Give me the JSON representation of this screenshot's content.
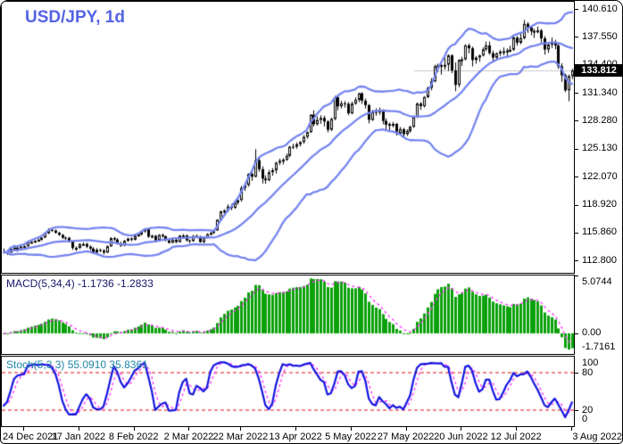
{
  "header": {
    "title": "USD/JPY, 1d"
  },
  "main_axis": {
    "labels": [
      "140.610",
      "137.550",
      "134.400",
      "131.340",
      "128.280",
      "125.130",
      "122.070",
      "118.920",
      "115.860",
      "112.800"
    ],
    "current_price": "133.812"
  },
  "macd_panel": {
    "label": "MACD(5,34,4) -1.1736 -1.2833",
    "axis_labels": [
      "5.0744",
      "0.00",
      "-1.7161"
    ]
  },
  "stoch_panel": {
    "label": "Stoch(5,3,3) 55.0910 35.8361",
    "axis_labels": [
      "100",
      "80",
      "20",
      "0"
    ]
  },
  "colors": {
    "title": "#5463e3",
    "bollinger": "#7585ef",
    "bull_body": "#ffffff",
    "bear_body": "#000000",
    "candle_outline": "#000000",
    "macd_histogram": "#0aa10a",
    "macd_signal": "#ff2dff",
    "stoch_k": "#1414e0",
    "stoch_d": "#ff2dff",
    "stoch_levels": "#e01010",
    "price_line": "#c6c6c6",
    "tag_bg": "#000000",
    "tag_fg": "#ffffff"
  },
  "chart_data": {
    "type": "candlestick",
    "symbol": "USD/JPY",
    "timeframe": "1d",
    "title": "USD/JPY, 1d",
    "y_axis_ticks": [
      140.61,
      137.55,
      134.4,
      131.34,
      128.28,
      125.13,
      122.07,
      118.92,
      115.86,
      112.8
    ],
    "y_range": [
      111.42,
      141.4
    ],
    "current_price": 133.812,
    "x_tick_labels": [
      "24 Dec 2021",
      "17 Jan 2022",
      "8 Feb 2022",
      "2 Mar 2022",
      "22 Mar 2022",
      "13 Apr 2022",
      "5 May 2022",
      "27 May 2022",
      "20 Jun 2022",
      "12 Jul 2022",
      "3 Aug 2022"
    ],
    "x_tick_candle_indices": [
      6,
      22,
      38,
      54,
      69,
      85,
      101,
      117,
      133,
      149,
      165
    ],
    "overlays": [
      {
        "name": "bollinger-bands",
        "period": 20,
        "deviation": 2
      }
    ],
    "panels": [
      {
        "name": "MACD",
        "params": [
          5,
          34,
          4
        ],
        "display_values": [
          -1.1736,
          -1.2833
        ],
        "y_axis_labels": [
          5.0744,
          0.0,
          -1.7161
        ]
      },
      {
        "name": "Stochastic",
        "params": [
          5,
          3,
          3
        ],
        "display_values": [
          55.091,
          35.8361
        ],
        "y_axis_labels": [
          100,
          80,
          20,
          0
        ],
        "levels": [
          80,
          20
        ]
      }
    ],
    "candles_ohlc": [
      [
        113.79,
        114.1,
        113.55,
        113.7
      ],
      [
        113.7,
        113.95,
        113.4,
        113.67
      ],
      [
        113.67,
        114.2,
        113.6,
        114.08
      ],
      [
        114.08,
        114.35,
        113.95,
        114.21
      ],
      [
        114.21,
        114.4,
        113.75,
        113.96
      ],
      [
        113.96,
        114.45,
        113.9,
        114.33
      ],
      [
        114.33,
        114.45,
        113.98,
        114.37
      ],
      [
        114.37,
        114.85,
        114.3,
        114.79
      ],
      [
        114.79,
        114.95,
        114.65,
        114.84
      ],
      [
        114.84,
        115.02,
        114.74,
        114.96
      ],
      [
        114.96,
        115.2,
        114.85,
        115.08
      ],
      [
        115.08,
        115.36,
        114.95,
        115.32
      ],
      [
        115.32,
        115.89,
        115.25,
        115.79
      ],
      [
        115.79,
        116.35,
        115.7,
        116.17
      ],
      [
        116.17,
        116.28,
        115.95,
        116.1
      ],
      [
        116.1,
        116.2,
        115.75,
        115.85
      ],
      [
        115.85,
        115.98,
        115.51,
        115.62
      ],
      [
        115.62,
        115.7,
        115.18,
        115.3
      ],
      [
        115.3,
        115.45,
        115.05,
        115.29
      ],
      [
        115.29,
        115.4,
        114.75,
        114.89
      ],
      [
        114.89,
        115.0,
        113.95,
        114.18
      ],
      [
        114.18,
        114.35,
        113.85,
        114.19
      ],
      [
        114.19,
        114.7,
        114.05,
        114.6
      ],
      [
        114.6,
        114.78,
        114.4,
        114.61
      ],
      [
        114.61,
        114.75,
        114.15,
        114.32
      ],
      [
        114.32,
        114.45,
        113.9,
        114.1
      ],
      [
        114.1,
        114.25,
        113.6,
        113.66
      ],
      [
        113.66,
        114.15,
        113.58,
        113.97
      ],
      [
        113.97,
        114.1,
        113.7,
        113.88
      ],
      [
        113.88,
        114.05,
        113.46,
        113.66
      ],
      [
        113.66,
        114.45,
        113.6,
        114.36
      ],
      [
        114.36,
        115.35,
        114.3,
        115.26
      ],
      [
        115.26,
        115.4,
        114.95,
        115.11
      ],
      [
        115.11,
        115.25,
        114.55,
        114.68
      ],
      [
        114.68,
        114.85,
        114.3,
        114.43
      ],
      [
        114.43,
        115.05,
        114.35,
        114.96
      ],
      [
        114.96,
        115.3,
        114.85,
        115.21
      ],
      [
        115.21,
        115.35,
        114.9,
        115.08
      ],
      [
        115.08,
        115.65,
        115.0,
        115.54
      ],
      [
        115.54,
        115.75,
        115.4,
        115.67
      ],
      [
        115.67,
        116.1,
        115.55,
        116.0
      ],
      [
        116.0,
        116.34,
        115.85,
        116.33
      ],
      [
        116.33,
        116.38,
        115.3,
        115.42
      ],
      [
        115.42,
        115.65,
        115.25,
        115.52
      ],
      [
        115.52,
        115.6,
        114.92,
        115.01
      ],
      [
        115.01,
        115.7,
        114.95,
        115.61
      ],
      [
        115.61,
        115.75,
        115.3,
        115.47
      ],
      [
        115.47,
        115.55,
        114.9,
        115.0
      ],
      [
        115.0,
        115.15,
        114.65,
        114.74
      ],
      [
        114.74,
        115.15,
        114.68,
        115.07
      ],
      [
        115.07,
        115.2,
        114.7,
        114.82
      ],
      [
        114.82,
        115.6,
        114.78,
        115.54
      ],
      [
        115.54,
        115.7,
        115.35,
        115.55
      ],
      [
        115.55,
        115.65,
        114.9,
        115.0
      ],
      [
        115.0,
        115.1,
        114.7,
        114.93
      ],
      [
        114.93,
        115.6,
        114.85,
        115.51
      ],
      [
        115.51,
        115.65,
        115.25,
        115.43
      ],
      [
        115.43,
        115.55,
        114.75,
        114.82
      ],
      [
        114.82,
        115.45,
        114.7,
        115.31
      ],
      [
        115.31,
        115.8,
        115.2,
        115.69
      ],
      [
        115.69,
        115.95,
        115.55,
        115.83
      ],
      [
        115.83,
        116.2,
        115.7,
        116.13
      ],
      [
        116.13,
        117.35,
        116.05,
        117.29
      ],
      [
        117.29,
        118.3,
        117.2,
        118.21
      ],
      [
        118.21,
        118.45,
        117.7,
        118.3
      ],
      [
        118.3,
        119.0,
        118.15,
        118.75
      ],
      [
        118.75,
        119.05,
        118.35,
        118.61
      ],
      [
        118.61,
        119.4,
        118.5,
        119.17
      ],
      [
        119.17,
        119.6,
        118.95,
        119.47
      ],
      [
        119.47,
        121.03,
        119.3,
        120.8
      ],
      [
        120.8,
        121.4,
        120.5,
        121.14
      ],
      [
        121.14,
        122.44,
        120.95,
        122.35
      ],
      [
        122.35,
        122.6,
        121.6,
        122.05
      ],
      [
        122.05,
        125.1,
        121.97,
        123.86
      ],
      [
        123.86,
        124.3,
        122.6,
        122.88
      ],
      [
        122.88,
        123.2,
        121.3,
        121.84
      ],
      [
        121.84,
        122.2,
        121.28,
        121.66
      ],
      [
        121.66,
        122.8,
        121.55,
        122.54
      ],
      [
        122.54,
        123.0,
        122.15,
        122.77
      ],
      [
        122.77,
        123.7,
        122.4,
        123.6
      ],
      [
        123.6,
        124.05,
        123.35,
        123.82
      ],
      [
        123.82,
        124.1,
        123.4,
        123.93
      ],
      [
        123.93,
        124.6,
        123.8,
        124.36
      ],
      [
        124.36,
        125.45,
        124.2,
        125.37
      ],
      [
        125.37,
        125.7,
        125.1,
        125.36
      ],
      [
        125.36,
        125.85,
        125.15,
        125.64
      ],
      [
        125.64,
        126.0,
        125.4,
        125.88
      ],
      [
        125.88,
        126.65,
        125.7,
        126.46
      ],
      [
        126.46,
        127.05,
        126.25,
        126.98
      ],
      [
        126.98,
        128.97,
        126.9,
        128.91
      ],
      [
        128.91,
        129.4,
        127.6,
        127.86
      ],
      [
        127.86,
        128.7,
        127.7,
        128.33
      ],
      [
        128.33,
        128.85,
        127.9,
        128.55
      ],
      [
        128.55,
        128.8,
        127.6,
        128.16
      ],
      [
        128.16,
        128.3,
        126.95,
        127.24
      ],
      [
        127.24,
        128.6,
        127.1,
        128.44
      ],
      [
        128.44,
        131.0,
        128.3,
        130.85
      ],
      [
        130.85,
        131.0,
        129.4,
        129.83
      ],
      [
        129.83,
        130.45,
        129.6,
        130.16
      ],
      [
        130.16,
        130.4,
        129.7,
        130.11
      ],
      [
        130.11,
        130.3,
        128.85,
        129.07
      ],
      [
        129.07,
        130.35,
        128.95,
        130.14
      ],
      [
        130.14,
        130.8,
        130.0,
        130.56
      ],
      [
        130.56,
        131.35,
        130.3,
        131.27
      ],
      [
        131.27,
        131.4,
        130.1,
        130.45
      ],
      [
        130.45,
        130.7,
        129.6,
        129.97
      ],
      [
        129.97,
        130.1,
        127.95,
        128.34
      ],
      [
        128.34,
        129.45,
        128.2,
        129.21
      ],
      [
        129.21,
        129.6,
        128.8,
        129.15
      ],
      [
        129.15,
        129.7,
        128.9,
        129.37
      ],
      [
        129.37,
        129.5,
        127.85,
        128.22
      ],
      [
        128.22,
        128.5,
        127.3,
        127.8
      ],
      [
        127.8,
        128.05,
        127.05,
        127.88
      ],
      [
        127.88,
        128.1,
        127.5,
        127.89
      ],
      [
        127.89,
        128.0,
        126.6,
        126.82
      ],
      [
        126.82,
        127.55,
        126.7,
        127.31
      ],
      [
        127.31,
        127.45,
        126.45,
        126.76
      ],
      [
        126.76,
        127.3,
        126.55,
        127.11
      ],
      [
        127.11,
        127.7,
        126.9,
        127.57
      ],
      [
        127.57,
        128.8,
        127.45,
        128.67
      ],
      [
        128.67,
        130.25,
        128.55,
        130.14
      ],
      [
        130.14,
        130.3,
        129.45,
        129.86
      ],
      [
        129.86,
        130.98,
        129.7,
        130.86
      ],
      [
        130.86,
        132.0,
        130.75,
        131.88
      ],
      [
        131.88,
        132.95,
        131.6,
        132.61
      ],
      [
        132.61,
        134.45,
        132.5,
        134.25
      ],
      [
        134.25,
        134.55,
        133.6,
        134.35
      ],
      [
        134.35,
        134.65,
        133.35,
        134.41
      ],
      [
        134.41,
        135.2,
        133.9,
        134.43
      ],
      [
        134.43,
        135.58,
        133.75,
        135.47
      ],
      [
        135.47,
        135.6,
        133.5,
        133.81
      ],
      [
        133.81,
        134.7,
        131.5,
        132.21
      ],
      [
        132.21,
        135.05,
        131.95,
        134.96
      ],
      [
        134.96,
        135.3,
        134.3,
        135.04
      ],
      [
        135.04,
        136.7,
        134.9,
        136.57
      ],
      [
        136.57,
        136.8,
        135.7,
        136.26
      ],
      [
        136.26,
        136.45,
        134.25,
        134.95
      ],
      [
        134.95,
        135.4,
        134.55,
        135.23
      ],
      [
        135.23,
        135.55,
        134.75,
        135.47
      ],
      [
        135.47,
        136.35,
        135.35,
        136.14
      ],
      [
        136.14,
        137.0,
        135.95,
        136.57
      ],
      [
        136.57,
        137.0,
        135.55,
        135.72
      ],
      [
        135.72,
        136.0,
        134.75,
        135.22
      ],
      [
        135.22,
        135.8,
        134.9,
        135.69
      ],
      [
        135.69,
        136.1,
        135.4,
        135.89
      ],
      [
        135.89,
        136.35,
        135.5,
        135.93
      ],
      [
        135.93,
        136.25,
        135.35,
        136.01
      ],
      [
        136.01,
        136.55,
        135.8,
        136.1
      ],
      [
        136.1,
        137.75,
        135.95,
        137.44
      ],
      [
        137.44,
        137.6,
        136.55,
        136.87
      ],
      [
        136.87,
        137.85,
        136.7,
        137.38
      ],
      [
        137.38,
        139.38,
        137.25,
        138.96
      ],
      [
        138.96,
        139.14,
        137.95,
        138.57
      ],
      [
        138.57,
        138.75,
        137.7,
        138.13
      ],
      [
        138.13,
        138.4,
        137.4,
        138.19
      ],
      [
        138.19,
        138.65,
        137.9,
        138.23
      ],
      [
        138.23,
        138.4,
        136.9,
        137.36
      ],
      [
        137.36,
        137.6,
        135.55,
        136.12
      ],
      [
        136.12,
        136.8,
        135.75,
        136.66
      ],
      [
        136.66,
        137.45,
        136.3,
        136.91
      ],
      [
        136.91,
        137.2,
        136.15,
        136.57
      ],
      [
        136.57,
        136.75,
        134.0,
        134.27
      ],
      [
        134.27,
        134.6,
        132.55,
        133.27
      ],
      [
        133.27,
        133.45,
        131.4,
        131.61
      ],
      [
        131.61,
        133.35,
        130.4,
        133.17
      ],
      [
        133.17,
        134.0,
        132.85,
        133.81
      ]
    ]
  }
}
